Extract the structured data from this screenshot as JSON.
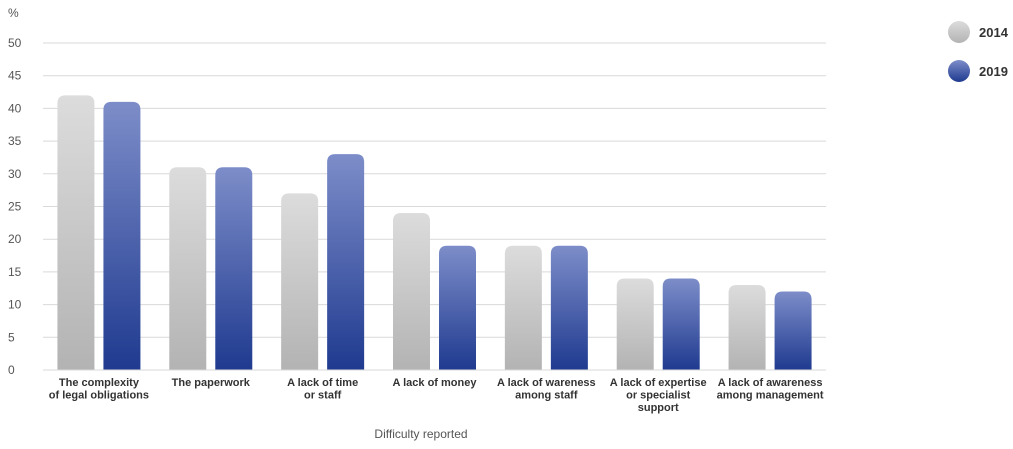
{
  "chart_data": {
    "type": "bar",
    "ylabel": "%",
    "xlabel": "Difficulty reported",
    "ylim": [
      0,
      50
    ],
    "yticks": [
      0,
      5,
      10,
      15,
      20,
      25,
      30,
      35,
      40,
      45,
      50
    ],
    "grid": true,
    "legend_position": "top-right",
    "categories": [
      [
        "The complexity",
        "of legal obligations"
      ],
      [
        "The paperwork"
      ],
      [
        "A lack of time",
        "or staff"
      ],
      [
        "A lack of money"
      ],
      [
        "A lack of wareness",
        "among staff"
      ],
      [
        "A lack of expertise",
        "or specialist",
        "support"
      ],
      [
        "A lack of  awareness",
        "among management"
      ]
    ],
    "series": [
      {
        "name": "2014",
        "values": [
          42,
          31,
          27,
          24,
          19,
          14,
          13
        ],
        "color_top": "#dcdcdc",
        "color_bottom": "#b3b3b3"
      },
      {
        "name": "2019",
        "values": [
          41,
          31,
          33,
          19,
          19,
          14,
          12
        ],
        "color_top": "#7d8dc9",
        "color_bottom": "#1f3a8f"
      }
    ]
  }
}
